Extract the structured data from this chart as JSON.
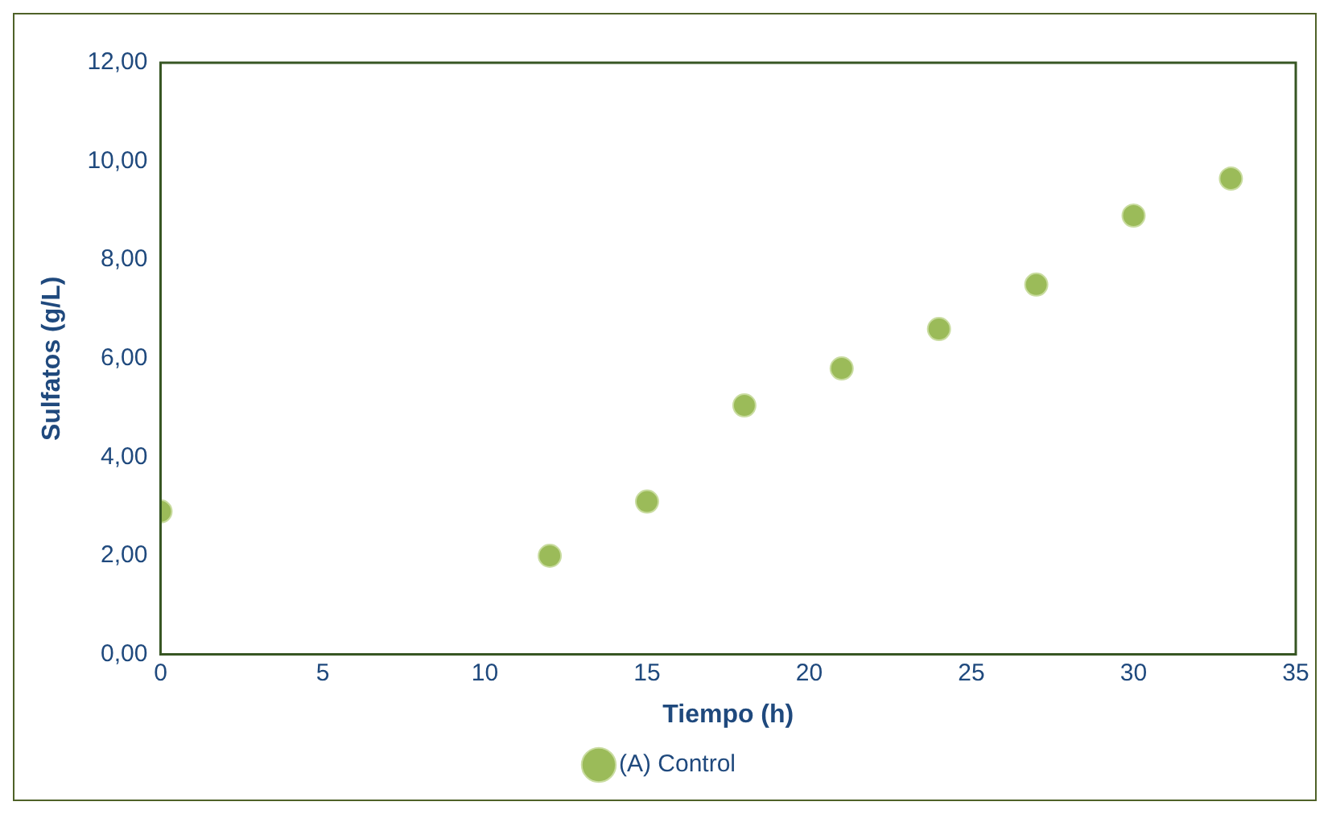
{
  "chart_data": {
    "type": "scatter",
    "xlabel": "Tiempo (h)",
    "ylabel": "Sulfatos (g/L)",
    "series": [
      {
        "name": "(A) Control",
        "color": "#9bbb59",
        "x": [
          0,
          12,
          15,
          18,
          21,
          24,
          27,
          30,
          33
        ],
        "values": [
          2.9,
          2.0,
          3.1,
          5.05,
          5.8,
          6.6,
          7.5,
          8.9,
          9.65
        ]
      }
    ],
    "xlim": [
      0,
      35
    ],
    "xticks": [
      0,
      5,
      10,
      15,
      20,
      25,
      30,
      35
    ],
    "ylim": [
      0,
      12
    ],
    "yticks": [
      {
        "value": 0,
        "label": "0,00"
      },
      {
        "value": 2,
        "label": "2,00"
      },
      {
        "value": 4,
        "label": "4,00"
      },
      {
        "value": 6,
        "label": "6,00"
      },
      {
        "value": 8,
        "label": "8,00"
      },
      {
        "value": 10,
        "label": "10,00"
      },
      {
        "value": 12,
        "label": "12,00"
      }
    ],
    "grid": false,
    "legend": "bottom",
    "marker": "circle"
  }
}
